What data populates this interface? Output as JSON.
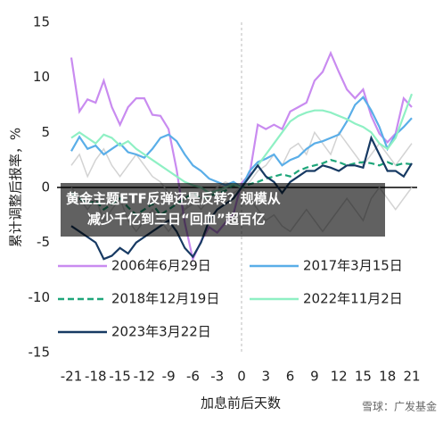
{
  "chart_data": {
    "type": "line",
    "x_label": "加息前后天数",
    "y_label": "累计调整后报率，%",
    "x": [
      -21,
      -20,
      -19,
      -18,
      -17,
      -16,
      -15,
      -14,
      -13,
      -12,
      -11,
      -10,
      -9,
      -8,
      -7,
      -6,
      -5,
      -4,
      -3,
      -2,
      -1,
      0,
      1,
      2,
      3,
      4,
      5,
      6,
      7,
      8,
      9,
      10,
      11,
      12,
      13,
      14,
      15,
      16,
      17,
      18,
      19,
      20,
      21
    ],
    "xlim": [
      -21,
      21
    ],
    "xticks": [
      -21,
      -18,
      -15,
      -12,
      -9,
      -6,
      -3,
      0,
      3,
      6,
      9,
      12,
      15,
      18,
      21
    ],
    "ylim": [
      -15,
      15
    ],
    "yticks": [
      -15,
      -10,
      -5,
      0,
      5,
      10,
      15
    ],
    "other_series_color": "#d3d3d3",
    "other_series": [
      {
        "values": [
          2,
          3,
          1,
          2.5,
          3.5,
          2,
          1,
          2,
          3,
          2,
          1,
          0.5,
          -0.5,
          -1,
          -2,
          -1.5,
          -1,
          -0.5,
          0,
          0.5,
          0.2,
          0,
          -1,
          -2,
          -3,
          -2.5,
          -3.5,
          -4,
          -3,
          -2,
          -3,
          -4,
          -3,
          -2,
          -1,
          -2,
          -3,
          -1,
          0,
          -1,
          -2,
          -1,
          0
        ]
      },
      {
        "values": [
          0,
          -1,
          -2,
          -1,
          -3,
          -2,
          -1,
          -3,
          -4,
          -3,
          -2,
          -3,
          -4,
          -3,
          -2,
          -1,
          -2,
          -1,
          -0.5,
          -1,
          -0.5,
          0,
          0.5,
          1.5,
          2,
          3,
          2,
          3.5,
          4,
          3,
          5,
          4,
          3,
          5,
          4,
          3,
          2,
          3,
          4,
          3,
          2,
          3,
          4
        ]
      }
    ],
    "series": [
      {
        "name": "2006年6月29日",
        "color": "#c98bf0",
        "dashed": false,
        "values": [
          11.8,
          6.9,
          8,
          7.7,
          9.7,
          7.3,
          5.7,
          7.3,
          8.1,
          8.1,
          6.6,
          6.5,
          5.3,
          1.6,
          -3.2,
          -6.5,
          -4.9,
          -3.6,
          -4.1,
          -3.2,
          -2.4,
          0.4,
          1.2,
          5.7,
          5.3,
          5.7,
          5.3,
          6.9,
          7.3,
          7.7,
          9.7,
          10.5,
          12.2,
          10.5,
          8.9,
          8.1,
          8.9,
          6.5,
          4.9,
          4.1,
          4.9,
          8.1,
          7.3
        ]
      },
      {
        "name": "2017年3月15日",
        "color": "#5aaee8",
        "dashed": false,
        "values": [
          3.3,
          4.6,
          3.5,
          3.8,
          3,
          3.5,
          4,
          3.2,
          3,
          2.7,
          3.5,
          4.5,
          4.8,
          4.2,
          3,
          2,
          1.5,
          0.8,
          0.5,
          0.2,
          0.5,
          0,
          1.5,
          2.3,
          2.6,
          3,
          2,
          2.5,
          2.8,
          3.5,
          4,
          4.2,
          4.5,
          4.8,
          6,
          7.5,
          8.2,
          7,
          5.5,
          3.5,
          4.8,
          5.5,
          6.3
        ]
      },
      {
        "name": "2018年12月19日",
        "color": "#1fa67a",
        "dashed": true,
        "values": [
          -0.5,
          -1,
          -1.5,
          -1.2,
          -2,
          -1.5,
          -1,
          -1.8,
          -2.5,
          -2,
          -1.5,
          -2.5,
          -2,
          -1.5,
          -1,
          -0.5,
          -1,
          -0.8,
          -0.5,
          -0.3,
          0.2,
          0,
          0.3,
          0.5,
          0.8,
          1,
          1.2,
          1,
          1.5,
          1.8,
          2,
          2.2,
          2.5,
          2.3,
          2,
          2.2,
          2.3,
          2.2,
          2,
          2.3,
          2,
          2.2,
          2.1
        ]
      },
      {
        "name": "2022年11月2日",
        "color": "#8ff0c4",
        "dashed": false,
        "values": [
          4.5,
          5,
          4.5,
          4,
          4.8,
          4.5,
          3.8,
          4.2,
          3.5,
          3,
          2.5,
          2,
          1.5,
          1,
          0.5,
          0.2,
          0,
          -0.5,
          -0.3,
          0,
          0.3,
          0,
          1,
          2,
          3,
          4,
          5,
          6,
          6.5,
          6.8,
          7,
          7,
          6.8,
          6.5,
          6.2,
          5.8,
          5.5,
          5,
          4,
          3.5,
          4.5,
          6.5,
          8.5
        ]
      },
      {
        "name": "2023年3月22日",
        "color": "#173a63",
        "dashed": false,
        "values": [
          -3.5,
          -4,
          -4.5,
          -5,
          -6.5,
          -6.2,
          -5.5,
          -6,
          -5,
          -4.5,
          -4,
          -3.5,
          -3,
          -4,
          -5.5,
          -6.3,
          -5,
          -3,
          -2,
          -1.5,
          -1,
          0,
          1,
          2,
          1,
          0.5,
          -0.5,
          0.5,
          1,
          1.5,
          1.5,
          2,
          1.8,
          1.5,
          2,
          2,
          1.8,
          4.5,
          3,
          1.5,
          1.5,
          1,
          2.2
        ]
      }
    ]
  },
  "headline": [
    "黄金主题ETF反弹还是反转？规模从",
    "减少千亿到三日“回血”超百亿"
  ],
  "watermark": "雪球：广发基金"
}
